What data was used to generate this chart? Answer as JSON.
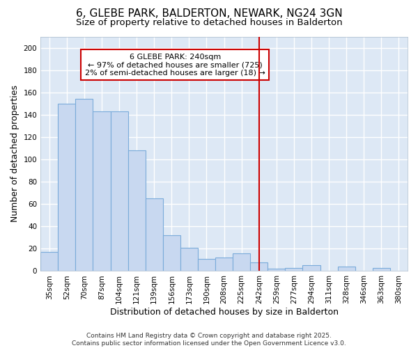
{
  "title1": "6, GLEBE PARK, BALDERTON, NEWARK, NG24 3GN",
  "title2": "Size of property relative to detached houses in Balderton",
  "xlabel": "Distribution of detached houses by size in Balderton",
  "ylabel": "Number of detached properties",
  "categories": [
    "35sqm",
    "52sqm",
    "70sqm",
    "87sqm",
    "104sqm",
    "121sqm",
    "139sqm",
    "156sqm",
    "173sqm",
    "190sqm",
    "208sqm",
    "225sqm",
    "242sqm",
    "259sqm",
    "277sqm",
    "294sqm",
    "311sqm",
    "328sqm",
    "346sqm",
    "363sqm",
    "380sqm"
  ],
  "values": [
    17,
    150,
    154,
    143,
    143,
    108,
    65,
    32,
    21,
    11,
    12,
    16,
    8,
    2,
    3,
    5,
    0,
    4,
    0,
    3,
    0
  ],
  "bar_color": "#c8d8f0",
  "bar_edge_color": "#7aabda",
  "vline_x_index": 12,
  "vline_color": "#cc0000",
  "annotation_text": "6 GLEBE PARK: 240sqm\n← 97% of detached houses are smaller (725)\n2% of semi-detached houses are larger (18) →",
  "annotation_box_color": "#cc0000",
  "ylim": [
    0,
    210
  ],
  "yticks": [
    0,
    20,
    40,
    60,
    80,
    100,
    120,
    140,
    160,
    180,
    200
  ],
  "footer": "Contains HM Land Registry data © Crown copyright and database right 2025.\nContains public sector information licensed under the Open Government Licence v3.0.",
  "fig_background_color": "#ffffff",
  "plot_background_color": "#dde8f5",
  "title_fontsize": 11,
  "subtitle_fontsize": 9.5,
  "axis_label_fontsize": 9,
  "tick_fontsize": 7.5,
  "footer_fontsize": 6.5,
  "annot_fontsize": 8
}
